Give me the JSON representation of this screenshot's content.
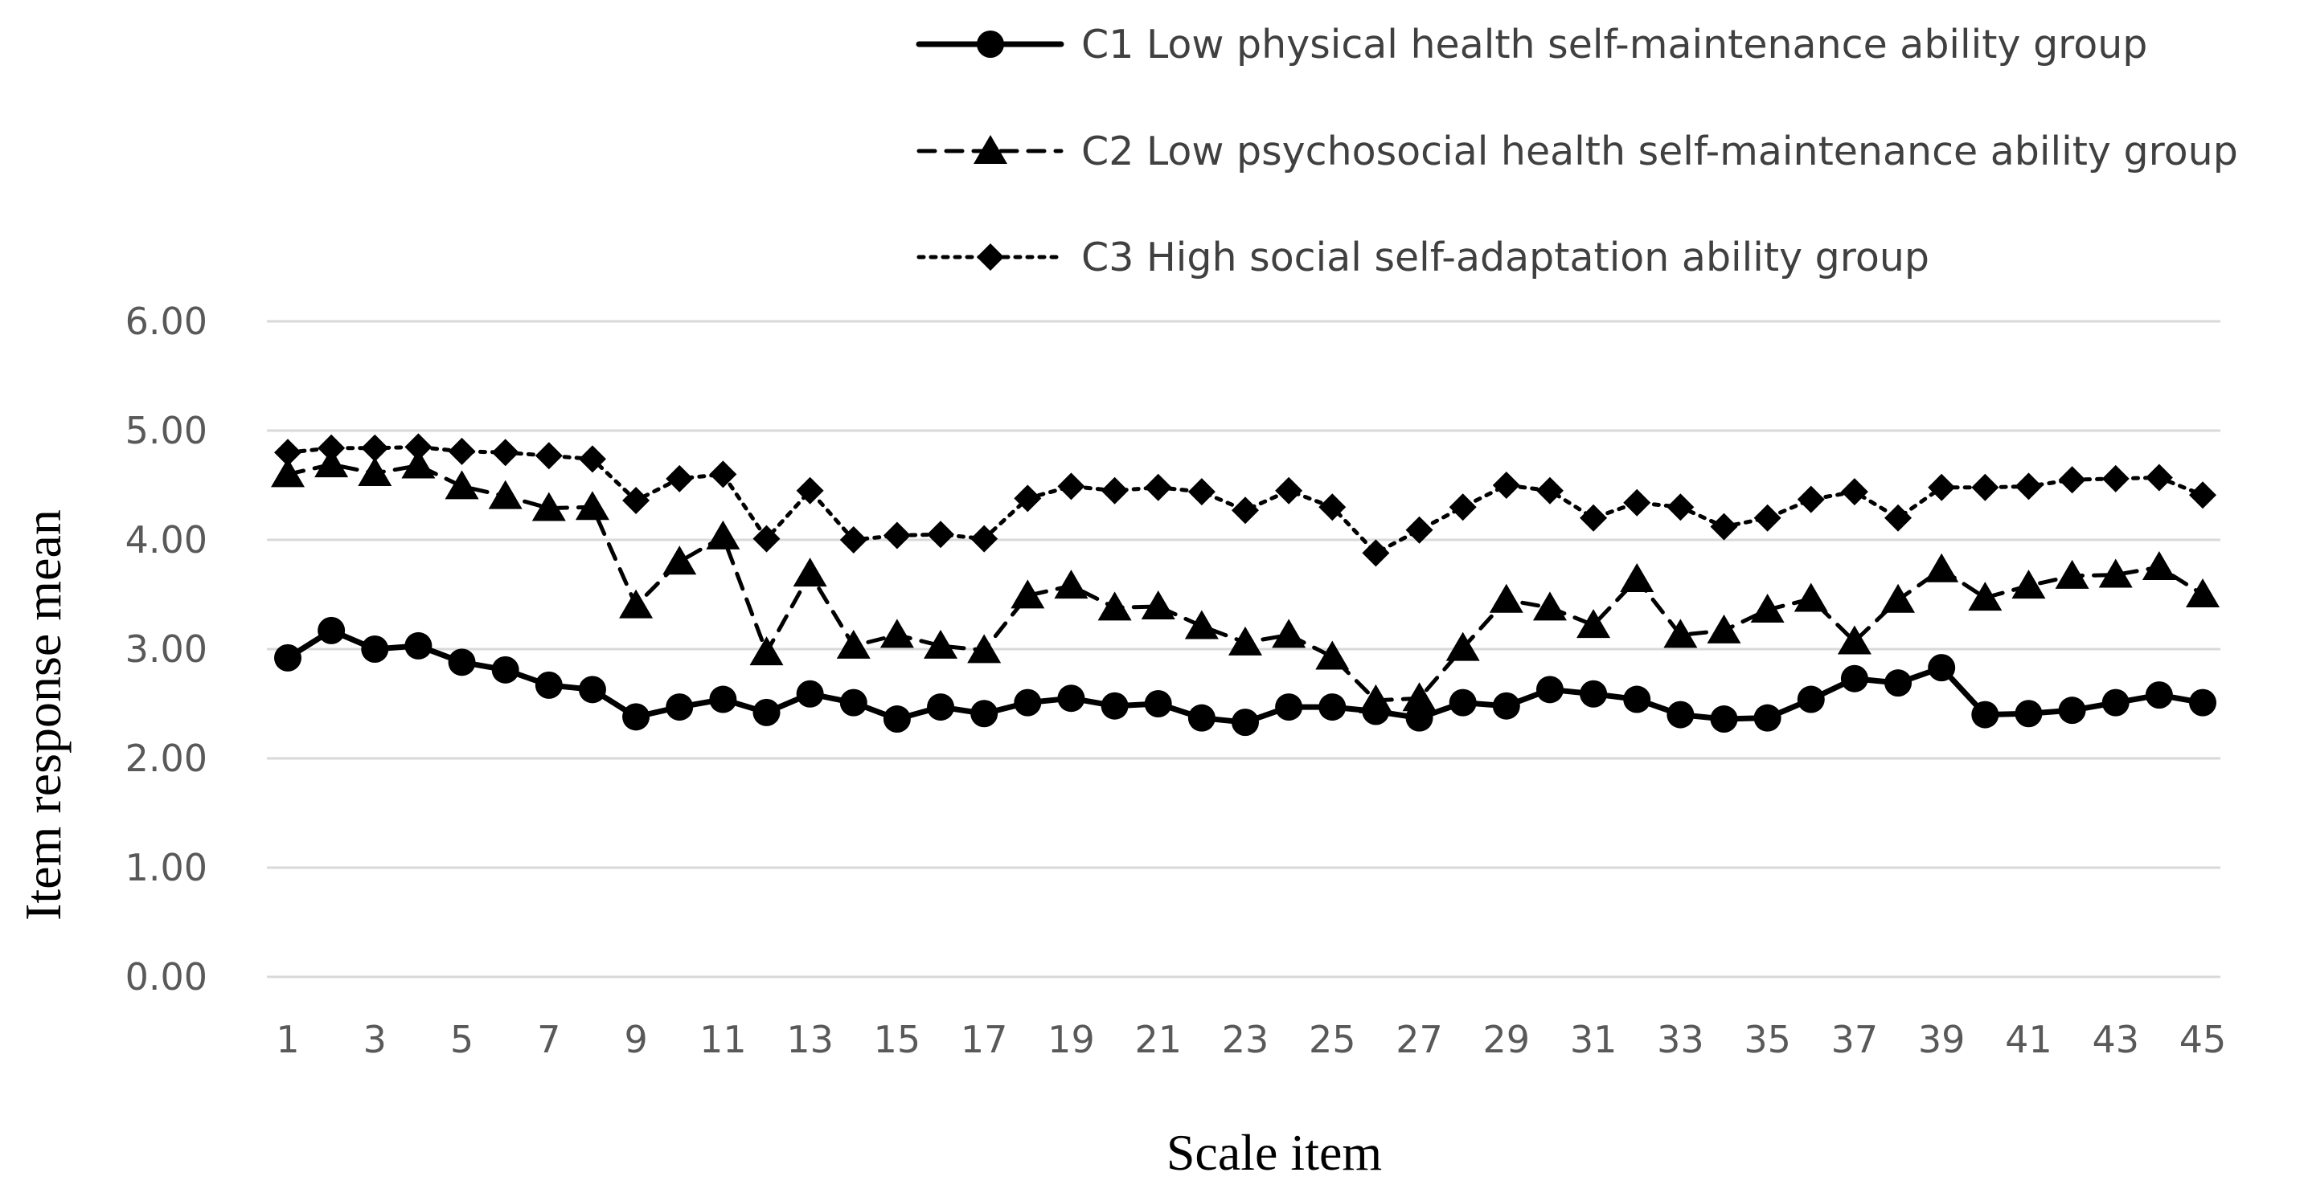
{
  "chart_data": {
    "type": "line",
    "title": "",
    "xlabel": "Scale  item",
    "ylabel": "Item response  mean",
    "ylim": [
      0,
      6
    ],
    "yticks": [
      "0.00",
      "1.00",
      "2.00",
      "3.00",
      "4.00",
      "5.00",
      "6.00"
    ],
    "x": [
      1,
      2,
      3,
      4,
      5,
      6,
      7,
      8,
      9,
      10,
      11,
      12,
      13,
      14,
      15,
      16,
      17,
      18,
      19,
      20,
      21,
      22,
      23,
      24,
      25,
      26,
      27,
      28,
      29,
      30,
      31,
      32,
      33,
      34,
      35,
      36,
      37,
      38,
      39,
      40,
      41,
      42,
      43,
      44,
      45
    ],
    "xtick_labels": [
      "1",
      "3",
      "5",
      "7",
      "9",
      "11",
      "13",
      "15",
      "17",
      "19",
      "21",
      "23",
      "25",
      "27",
      "29",
      "31",
      "33",
      "35",
      "37",
      "39",
      "41",
      "43",
      "45"
    ],
    "grid": "horizontal",
    "legend_position": "top-right",
    "series": [
      {
        "name": "C1 Low physical health self-maintenance ability group",
        "line_style": "solid",
        "marker": "circle",
        "color": "#000000",
        "values": [
          2.92,
          3.17,
          3.0,
          3.03,
          2.88,
          2.81,
          2.67,
          2.63,
          2.38,
          2.47,
          2.54,
          2.42,
          2.59,
          2.51,
          2.36,
          2.47,
          2.41,
          2.51,
          2.55,
          2.48,
          2.5,
          2.37,
          2.33,
          2.47,
          2.47,
          2.43,
          2.37,
          2.51,
          2.48,
          2.63,
          2.59,
          2.54,
          2.4,
          2.36,
          2.37,
          2.54,
          2.73,
          2.69,
          2.83,
          2.4,
          2.41,
          2.44,
          2.51,
          2.58,
          2.51
        ]
      },
      {
        "name": "C2 Low psychosocial health self-maintenance ability group",
        "line_style": "dashed",
        "marker": "triangle",
        "color": "#000000",
        "values": [
          4.6,
          4.69,
          4.61,
          4.68,
          4.49,
          4.4,
          4.29,
          4.3,
          3.4,
          3.8,
          4.03,
          2.97,
          3.69,
          3.03,
          3.13,
          3.03,
          2.99,
          3.49,
          3.58,
          3.38,
          3.39,
          3.21,
          3.06,
          3.13,
          2.93,
          2.53,
          2.55,
          3.01,
          3.45,
          3.38,
          3.22,
          3.64,
          3.13,
          3.17,
          3.36,
          3.46,
          3.07,
          3.45,
          3.73,
          3.47,
          3.58,
          3.67,
          3.68,
          3.75,
          3.5
        ]
      },
      {
        "name": "C3 High social self-adaptation ability group",
        "line_style": "dotted",
        "marker": "diamond",
        "color": "#000000",
        "values": [
          4.8,
          4.84,
          4.84,
          4.85,
          4.81,
          4.8,
          4.77,
          4.74,
          4.36,
          4.56,
          4.6,
          4.01,
          4.45,
          4.0,
          4.04,
          4.05,
          4.01,
          4.38,
          4.49,
          4.45,
          4.48,
          4.44,
          4.27,
          4.45,
          4.3,
          3.88,
          4.09,
          4.3,
          4.5,
          4.45,
          4.2,
          4.34,
          4.3,
          4.12,
          4.2,
          4.37,
          4.44,
          4.2,
          4.48,
          4.48,
          4.49,
          4.55,
          4.56,
          4.57,
          4.41
        ]
      }
    ]
  }
}
